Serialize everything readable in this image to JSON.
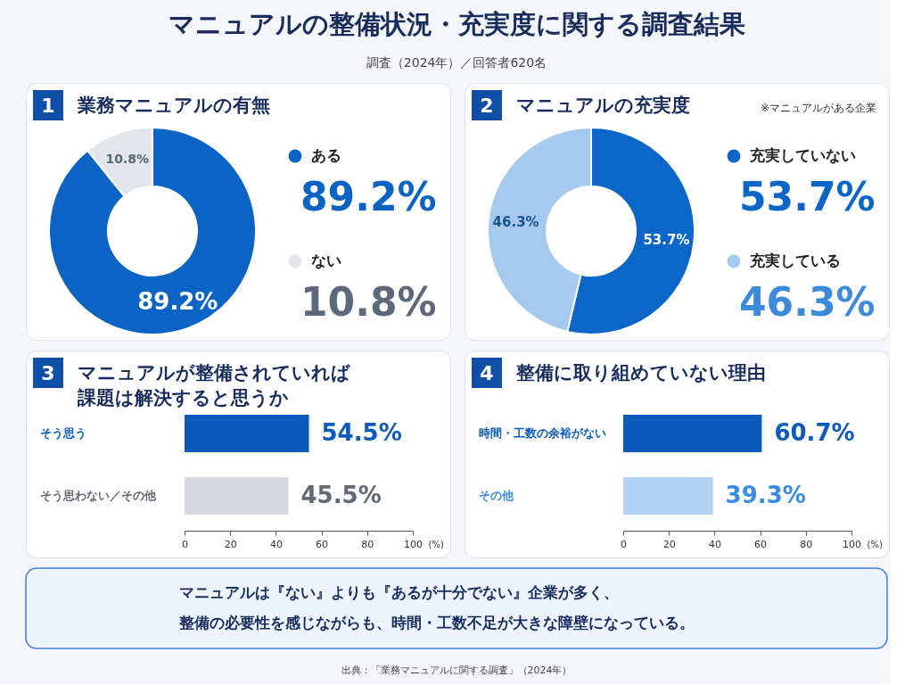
{
  "chart_data": [
    {
      "type": "other",
      "title": "マニュアルの整備状況・充実度に関する調査結果",
      "subtitle": "調査（2024年）／回答者620名"
    },
    {
      "type": "donut",
      "title": "業務マニュアルの有無",
      "annotations": [
        "1"
      ],
      "categories": [
        "ある",
        "ない"
      ],
      "values": [
        89.2,
        10.8
      ],
      "colors": [
        "#0b63c4",
        "#e2e5e9"
      ],
      "value_labels": [
        "89.2%",
        "10.8%"
      ],
      "legend": "right"
    },
    {
      "type": "donut",
      "title": "マニュアルの充実度",
      "annotations": [
        "2",
        "※マニュアルがある企業"
      ],
      "categories": [
        "充実していない",
        "充実している"
      ],
      "values": [
        53.7,
        46.3
      ],
      "colors": [
        "#0b66c8",
        "#a5c9ef"
      ],
      "value_labels": [
        "53.7%",
        "46.3%"
      ],
      "legend": "right"
    },
    {
      "type": "bar",
      "orientation": "horizontal",
      "title": "マニュアルが整備されていれば課題は解決すると思うか",
      "annotations": [
        "3"
      ],
      "categories": [
        "そう思う",
        "そう思わない／その他"
      ],
      "values": [
        54.5,
        45.5
      ],
      "colors": [
        "#0b5bbd",
        "#d6d9dd"
      ],
      "value_labels": [
        "54.5%",
        "45.5%"
      ],
      "xlim": [
        0,
        100
      ],
      "xticks": [
        0,
        20,
        40,
        60,
        80,
        100
      ],
      "xlabel": "(%)"
    },
    {
      "type": "bar",
      "orientation": "horizontal",
      "title": "整備に取り組めていない理由",
      "annotations": [
        "4"
      ],
      "categories": [
        "時間・工数の余裕がない",
        "その他"
      ],
      "values": [
        60.7,
        39.3
      ],
      "colors": [
        "#0b5bbd",
        "#b3d3f3"
      ],
      "value_labels": [
        "60.7%",
        "39.3%"
      ],
      "xlim": [
        0,
        100
      ],
      "xticks": [
        0,
        20,
        40,
        60,
        80,
        100
      ],
      "xlabel": "(%)"
    },
    {
      "type": "other",
      "annotations": [
        "マニュアルは『ない』よりも『あるが十分でない』企業が多く、",
        "整備の必要性を感じながらも、時間・工数不足が大きな障壁になっている。"
      ]
    },
    {
      "type": "other",
      "annotations": [
        "出典：「業務マニュアルに関する調査」（2024年）"
      ]
    }
  ]
}
